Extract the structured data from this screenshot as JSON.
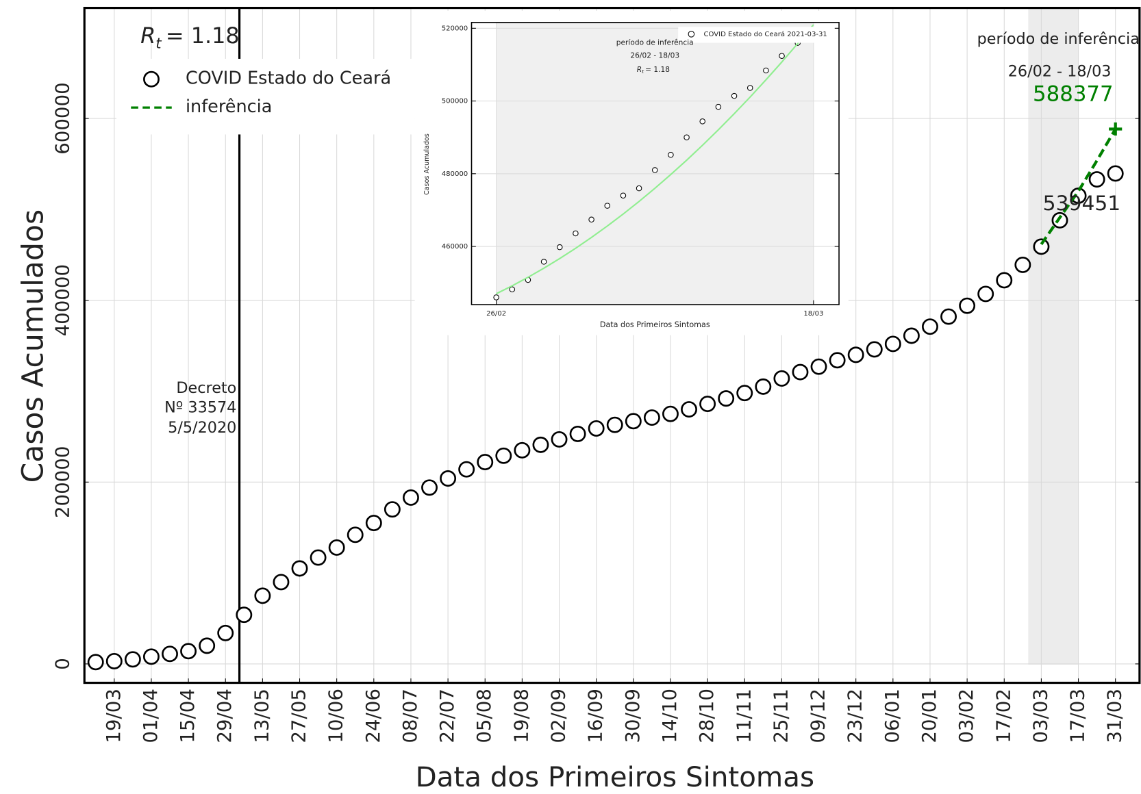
{
  "chart_data": [
    {
      "type": "line",
      "xlabel": "Data dos Primeiros Sintomas",
      "ylabel": "Casos Acumulados",
      "categories": [
        null,
        "19/03",
        null,
        "01/04",
        null,
        "15/04",
        null,
        "29/04",
        null,
        "13/05",
        null,
        "27/05",
        null,
        "10/06",
        null,
        "24/06",
        null,
        "08/07",
        null,
        "22/07",
        null,
        "05/08",
        null,
        "19/08",
        null,
        "02/09",
        null,
        "16/09",
        null,
        "30/09",
        null,
        "14/10",
        null,
        "28/10",
        null,
        "11/11",
        null,
        "25/11",
        null,
        "09/12",
        null,
        "23/12",
        null,
        "06/01",
        null,
        "20/01",
        null,
        "03/02",
        null,
        "17/02",
        null,
        "03/03",
        null,
        "17/03",
        null,
        "31/03"
      ],
      "series": [
        {
          "name": "COVID Estado do Ceará",
          "color": "#000000",
          "marker": "circle",
          "values": [
            2000,
            3000,
            5000,
            8000,
            11000,
            14000,
            20000,
            34000,
            54000,
            75000,
            90000,
            105000,
            117000,
            128000,
            142000,
            155000,
            170000,
            183000,
            194000,
            204000,
            214000,
            222000,
            229000,
            235000,
            241000,
            247000,
            253000,
            259000,
            263000,
            267000,
            271000,
            275000,
            280000,
            286000,
            292000,
            298000,
            305000,
            314000,
            321000,
            327000,
            334000,
            340000,
            346000,
            352000,
            361000,
            371000,
            382000,
            394000,
            407000,
            422000,
            439000,
            459000,
            488000,
            515000,
            533000,
            539451
          ]
        },
        {
          "name": "inferência",
          "color": "#008000",
          "linestyle": "dashed",
          "end_marker": "plus",
          "values": [
            null,
            null,
            null,
            null,
            null,
            null,
            null,
            null,
            null,
            null,
            null,
            null,
            null,
            null,
            null,
            null,
            null,
            null,
            null,
            null,
            null,
            null,
            null,
            null,
            null,
            null,
            null,
            null,
            null,
            null,
            null,
            null,
            null,
            null,
            null,
            null,
            null,
            null,
            null,
            null,
            null,
            null,
            null,
            null,
            null,
            null,
            null,
            null,
            null,
            null,
            null,
            461600,
            491000,
            520000,
            553600,
            588377
          ]
        }
      ],
      "ylim": [
        -20800,
        721600
      ],
      "yticks": [
        0,
        200000,
        400000,
        600000
      ],
      "grid": true,
      "legend": "upper left",
      "rt": {
        "symbol": "R",
        "subscript": "t",
        "text": "= 1.18"
      },
      "decree": [
        "Decreto",
        "Nº 33574",
        "5/5/2020"
      ],
      "period_title": "período de inferência",
      "period_range": "26/02 - 18/03"
    },
    {
      "type": "line",
      "xlabel": "Data dos Primeiros Sintomas",
      "ylabel": "Casos Acumulados",
      "categories": [
        "26/02",
        null,
        null,
        null,
        null,
        null,
        null,
        null,
        null,
        null,
        null,
        null,
        null,
        null,
        null,
        null,
        null,
        null,
        null,
        null,
        "18/03"
      ],
      "series": [
        {
          "name": "COVID Estado do Ceará 2021-03-31",
          "color": "#000000",
          "marker": "circle",
          "values": [
            446000,
            448200,
            450800,
            455800,
            459800,
            463600,
            467400,
            471200,
            474000,
            476000,
            481000,
            485200,
            490000,
            494400,
            498400,
            501400,
            503600,
            508400,
            512400,
            516000,
            null
          ]
        },
        {
          "color": "#90ee90",
          "values": [
            447000,
            449180,
            451520,
            454020,
            456680,
            459500,
            462480,
            465620,
            468920,
            472380,
            476000,
            479780,
            483720,
            487820,
            492080,
            496500,
            501080,
            505820,
            510720,
            515780,
            521000
          ]
        }
      ],
      "ylim": [
        444000,
        521600
      ],
      "yticks": [
        460000,
        480000,
        500000,
        520000
      ],
      "grid": true,
      "legend": "upper right",
      "rt": {
        "symbol": "R",
        "subscript": "t",
        "text": "= 1.18"
      },
      "period_title": "período de inferência",
      "period_range": "26/02 - 18/03"
    }
  ]
}
